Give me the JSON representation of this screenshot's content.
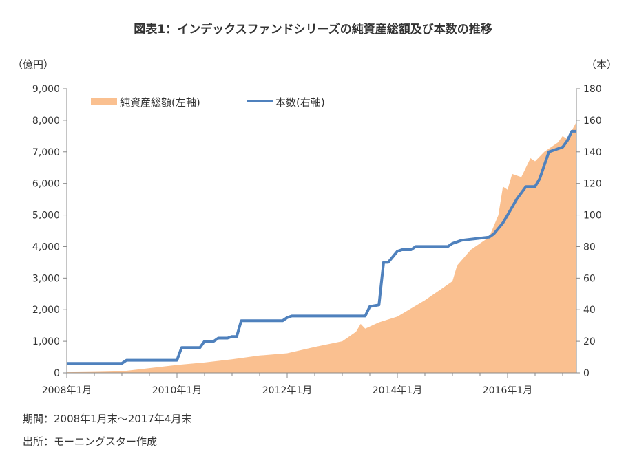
{
  "title": "図表1：インデックスファンドシリーズの純資産総額及び本数の推移",
  "period_note": "期間：2008年1月末～2017年4月末",
  "source_note": "出所：モーニングスター作成",
  "chart_data": {
    "type": "area+line",
    "left_axis": {
      "unit_label": "（億円）",
      "range": [
        0,
        9000
      ],
      "ticks": [
        "0",
        "1,000",
        "2,000",
        "3,000",
        "4,000",
        "5,000",
        "6,000",
        "7,000",
        "8,000",
        "9,000"
      ]
    },
    "right_axis": {
      "unit_label": "（本）",
      "range": [
        0,
        180
      ],
      "ticks": [
        "0",
        "20",
        "40",
        "60",
        "80",
        "100",
        "120",
        "140",
        "160",
        "180"
      ]
    },
    "x_axis": {
      "range": [
        "2008-01",
        "2017-04"
      ],
      "tick_labels": [
        "2008年1月",
        "2010年1月",
        "2012年1月",
        "2014年1月",
        "2016年1月"
      ]
    },
    "legend_position": "top-left",
    "series": [
      {
        "name": "純資産総額(左軸)",
        "type": "area",
        "axis": "left",
        "color": "#FAC090",
        "points": [
          [
            "2008-01",
            20
          ],
          [
            "2008-07",
            30
          ],
          [
            "2009-01",
            50
          ],
          [
            "2009-07",
            150
          ],
          [
            "2010-01",
            250
          ],
          [
            "2010-07",
            330
          ],
          [
            "2011-01",
            430
          ],
          [
            "2011-07",
            550
          ],
          [
            "2012-01",
            620
          ],
          [
            "2012-07",
            820
          ],
          [
            "2013-01",
            1000
          ],
          [
            "2013-04",
            1300
          ],
          [
            "2013-05",
            1550
          ],
          [
            "2013-06",
            1400
          ],
          [
            "2013-09",
            1600
          ],
          [
            "2014-01",
            1780
          ],
          [
            "2014-07",
            2300
          ],
          [
            "2015-01",
            2900
          ],
          [
            "2015-02",
            3400
          ],
          [
            "2015-05",
            3900
          ],
          [
            "2015-09",
            4300
          ],
          [
            "2015-11",
            5000
          ],
          [
            "2015-12",
            5900
          ],
          [
            "2016-01",
            5800
          ],
          [
            "2016-02",
            6300
          ],
          [
            "2016-04",
            6200
          ],
          [
            "2016-06",
            6800
          ],
          [
            "2016-07",
            6700
          ],
          [
            "2016-09",
            7000
          ],
          [
            "2016-12",
            7300
          ],
          [
            "2017-01",
            7500
          ],
          [
            "2017-02",
            7400
          ],
          [
            "2017-04",
            7950
          ]
        ]
      },
      {
        "name": "本数(右軸)",
        "type": "line",
        "axis": "right",
        "color": "#4F81BD",
        "points": [
          [
            "2008-01",
            6
          ],
          [
            "2009-01",
            6
          ],
          [
            "2009-02",
            8
          ],
          [
            "2010-01",
            8
          ],
          [
            "2010-02",
            16
          ],
          [
            "2010-06",
            16
          ],
          [
            "2010-07",
            20
          ],
          [
            "2010-09",
            20
          ],
          [
            "2010-10",
            22
          ],
          [
            "2010-12",
            22
          ],
          [
            "2011-01",
            23
          ],
          [
            "2011-02",
            23
          ],
          [
            "2011-03",
            33
          ],
          [
            "2011-12",
            33
          ],
          [
            "2012-01",
            35
          ],
          [
            "2012-02",
            36
          ],
          [
            "2013-06",
            36
          ],
          [
            "2013-07",
            42
          ],
          [
            "2013-09",
            43
          ],
          [
            "2013-10",
            70
          ],
          [
            "2013-11",
            70
          ],
          [
            "2014-01",
            77
          ],
          [
            "2014-02",
            78
          ],
          [
            "2014-04",
            78
          ],
          [
            "2014-05",
            80
          ],
          [
            "2014-12",
            80
          ],
          [
            "2015-01",
            82
          ],
          [
            "2015-03",
            84
          ],
          [
            "2015-06",
            85
          ],
          [
            "2015-09",
            86
          ],
          [
            "2015-10",
            88
          ],
          [
            "2015-12",
            95
          ],
          [
            "2016-01",
            100
          ],
          [
            "2016-03",
            110
          ],
          [
            "2016-05",
            118
          ],
          [
            "2016-07",
            118
          ],
          [
            "2016-08",
            123
          ],
          [
            "2016-10",
            140
          ],
          [
            "2016-11",
            141
          ],
          [
            "2017-01",
            143
          ],
          [
            "2017-02",
            147
          ],
          [
            "2017-03",
            153
          ],
          [
            "2017-04",
            153
          ]
        ]
      }
    ]
  }
}
